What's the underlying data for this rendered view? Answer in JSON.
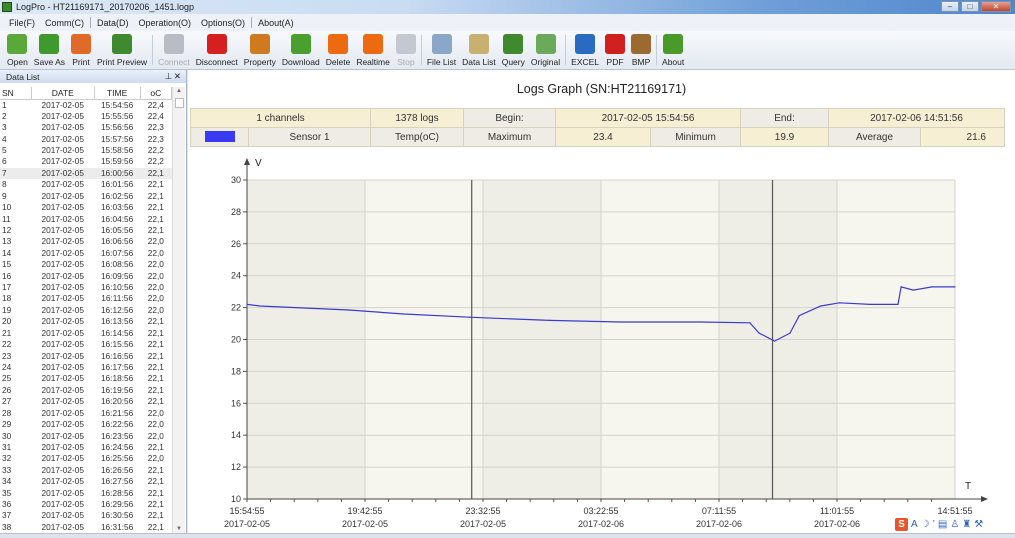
{
  "window": {
    "title": "LogPro - HT21169171_20170206_1451.logp"
  },
  "menu": [
    "File(F)",
    "Comm(C)",
    "Data(D)",
    "Operation(O)",
    "Options(O)",
    "About(A)"
  ],
  "toolbar": [
    {
      "label": "Open",
      "icon": "folder-open-icon",
      "color": "#5aa83a"
    },
    {
      "label": "Save As",
      "icon": "save-icon",
      "color": "#3f9a2e"
    },
    {
      "label": "Print",
      "icon": "printer-icon",
      "color": "#e06a2a"
    },
    {
      "label": "Print Preview",
      "icon": "print-preview-icon",
      "color": "#3f8a2e"
    },
    {
      "label": "Connect",
      "icon": "connect-icon",
      "color": "#b8bcc4",
      "disabled": true
    },
    {
      "label": "Disconnect",
      "icon": "disconnect-icon",
      "color": "#d62020"
    },
    {
      "label": "Property",
      "icon": "tools-icon",
      "color": "#d07a20"
    },
    {
      "label": "Download",
      "icon": "download-arrow-icon",
      "color": "#4aa02e"
    },
    {
      "label": "Delete",
      "icon": "delete-icon",
      "color": "#ee6a10"
    },
    {
      "label": "Realtime",
      "icon": "play-icon",
      "color": "#ee6a10"
    },
    {
      "label": "Stop",
      "icon": "stop-icon",
      "color": "#c4c8d0",
      "disabled": true
    },
    {
      "label": "File List",
      "icon": "file-list-icon",
      "color": "#8aa6c8"
    },
    {
      "label": "Data List",
      "icon": "data-list-icon",
      "color": "#c8b070"
    },
    {
      "label": "Query",
      "icon": "magnifier-icon",
      "color": "#3f8a2e"
    },
    {
      "label": "Original",
      "icon": "original-size-icon",
      "color": "#6aaa5a"
    },
    {
      "label": "EXCEL",
      "icon": "excel-chart-icon",
      "color": "#2a6ac0"
    },
    {
      "label": "PDF",
      "icon": "pdf-icon",
      "color": "#d02020"
    },
    {
      "label": "BMP",
      "icon": "bmp-image-icon",
      "color": "#9a6a30"
    },
    {
      "label": "About",
      "icon": "info-icon",
      "color": "#4a9a2a"
    }
  ],
  "datalist": {
    "title": "Data List",
    "columns": [
      "SN",
      "DATE",
      "TIME",
      "oC"
    ],
    "selected_row": 7,
    "rows": [
      [
        "1",
        "2017-02-05",
        "15:54:56",
        "22,4"
      ],
      [
        "2",
        "2017-02-05",
        "15:55:56",
        "22,4"
      ],
      [
        "3",
        "2017-02-05",
        "15:56:56",
        "22,3"
      ],
      [
        "4",
        "2017-02-05",
        "15:57:56",
        "22,3"
      ],
      [
        "5",
        "2017-02-05",
        "15:58:56",
        "22,2"
      ],
      [
        "6",
        "2017-02-05",
        "15:59:56",
        "22,2"
      ],
      [
        "7",
        "2017-02-05",
        "16:00:56",
        "22,1"
      ],
      [
        "8",
        "2017-02-05",
        "16:01:56",
        "22,1"
      ],
      [
        "9",
        "2017-02-05",
        "16:02:56",
        "22,1"
      ],
      [
        "10",
        "2017-02-05",
        "16:03:56",
        "22,1"
      ],
      [
        "11",
        "2017-02-05",
        "16:04:56",
        "22,1"
      ],
      [
        "12",
        "2017-02-05",
        "16:05:56",
        "22,1"
      ],
      [
        "13",
        "2017-02-05",
        "16:06:56",
        "22,0"
      ],
      [
        "14",
        "2017-02-05",
        "16:07:56",
        "22,0"
      ],
      [
        "15",
        "2017-02-05",
        "16:08:56",
        "22,0"
      ],
      [
        "16",
        "2017-02-05",
        "16:09:56",
        "22,0"
      ],
      [
        "17",
        "2017-02-05",
        "16:10:56",
        "22,0"
      ],
      [
        "18",
        "2017-02-05",
        "16:11:56",
        "22,0"
      ],
      [
        "19",
        "2017-02-05",
        "16:12:56",
        "22,0"
      ],
      [
        "20",
        "2017-02-05",
        "16:13:56",
        "22,1"
      ],
      [
        "21",
        "2017-02-05",
        "16:14:56",
        "22,1"
      ],
      [
        "22",
        "2017-02-05",
        "16:15:56",
        "22,1"
      ],
      [
        "23",
        "2017-02-05",
        "16:16:56",
        "22,1"
      ],
      [
        "24",
        "2017-02-05",
        "16:17:56",
        "22,1"
      ],
      [
        "25",
        "2017-02-05",
        "16:18:56",
        "22,1"
      ],
      [
        "26",
        "2017-02-05",
        "16:19:56",
        "22,1"
      ],
      [
        "27",
        "2017-02-05",
        "16:20:56",
        "22,1"
      ],
      [
        "28",
        "2017-02-05",
        "16:21:56",
        "22,0"
      ],
      [
        "29",
        "2017-02-05",
        "16:22:56",
        "22,0"
      ],
      [
        "30",
        "2017-02-05",
        "16:23:56",
        "22,0"
      ],
      [
        "31",
        "2017-02-05",
        "16:24:56",
        "22,1"
      ],
      [
        "32",
        "2017-02-05",
        "16:25:56",
        "22,0"
      ],
      [
        "33",
        "2017-02-05",
        "16:26:56",
        "22,1"
      ],
      [
        "34",
        "2017-02-05",
        "16:27:56",
        "22,1"
      ],
      [
        "35",
        "2017-02-05",
        "16:28:56",
        "22,1"
      ],
      [
        "36",
        "2017-02-05",
        "16:29:56",
        "22,1"
      ],
      [
        "37",
        "2017-02-05",
        "16:30:56",
        "22,1"
      ],
      [
        "38",
        "2017-02-05",
        "16:31:56",
        "22,1"
      ]
    ]
  },
  "graph": {
    "title": "Logs Graph (SN:HT21169171)",
    "info": {
      "channels": "1 channels",
      "logs": "1378 logs",
      "begin_label": "Begin:",
      "begin": "2017-02-05 15:54:56",
      "end_label": "End:",
      "end": "2017-02-06 14:51:56",
      "sensor_color": "#3a3af0",
      "sensor": "Sensor 1",
      "unit": "Temp(oC)",
      "max_label": "Maximum",
      "max": "23.4",
      "min_label": "Minimum",
      "min": "19.9",
      "avg_label": "Average",
      "avg": "21.6"
    }
  },
  "chart_data": {
    "type": "line",
    "ylabel": "V",
    "xlabel": "T",
    "ylim": [
      10,
      30
    ],
    "yticks": [
      "10",
      "12",
      "14",
      "16",
      "18",
      "20",
      "22",
      "24",
      "26",
      "28",
      "30"
    ],
    "xlim": [
      "2017-02-05T15:54:55",
      "2017-02-06T14:51:55"
    ],
    "xticks": [
      {
        "time": "15:54:55",
        "date": "2017-02-05"
      },
      {
        "time": "19:42:55",
        "date": "2017-02-05"
      },
      {
        "time": "23:32:55",
        "date": "2017-02-05"
      },
      {
        "time": "03:22:55",
        "date": "2017-02-06"
      },
      {
        "time": "07:11:55",
        "date": "2017-02-06"
      },
      {
        "time": "11:01:55",
        "date": "2017-02-06"
      },
      {
        "time": "14:51:55",
        "date": ""
      }
    ],
    "grid": true,
    "line_color": "#3a3ad0",
    "markers": [
      "2017-02-05T23:12:00",
      "2017-02-06T08:57:00"
    ],
    "series": [
      {
        "points": [
          [
            "2017-02-05T15:54:55",
            22.2
          ],
          [
            "2017-02-05T16:20:00",
            22.1
          ],
          [
            "2017-02-05T17:30:00",
            22.0
          ],
          [
            "2017-02-05T19:13:00",
            21.85
          ],
          [
            "2017-02-05T21:00:00",
            21.6
          ],
          [
            "2017-02-05T23:07:00",
            21.4
          ],
          [
            "2017-02-06T01:43:00",
            21.2
          ],
          [
            "2017-02-06T04:00:00",
            21.1
          ],
          [
            "2017-02-06T06:37:00",
            21.1
          ],
          [
            "2017-02-06T08:13:00",
            21.05
          ],
          [
            "2017-02-06T08:31:00",
            20.4
          ],
          [
            "2017-02-06T08:49:00",
            20.1
          ],
          [
            "2017-02-06T09:01:00",
            19.9
          ],
          [
            "2017-02-06T09:31:00",
            20.4
          ],
          [
            "2017-02-06T09:49:00",
            21.5
          ],
          [
            "2017-02-06T10:31:00",
            22.1
          ],
          [
            "2017-02-06T11:07:00",
            22.3
          ],
          [
            "2017-02-06T12:07:00",
            22.2
          ],
          [
            "2017-02-06T13:01:00",
            22.2
          ],
          [
            "2017-02-06T13:07:00",
            23.3
          ],
          [
            "2017-02-06T13:31:00",
            23.1
          ],
          [
            "2017-02-06T14:07:00",
            23.3
          ],
          [
            "2017-02-06T14:51:55",
            23.3
          ]
        ]
      }
    ]
  }
}
